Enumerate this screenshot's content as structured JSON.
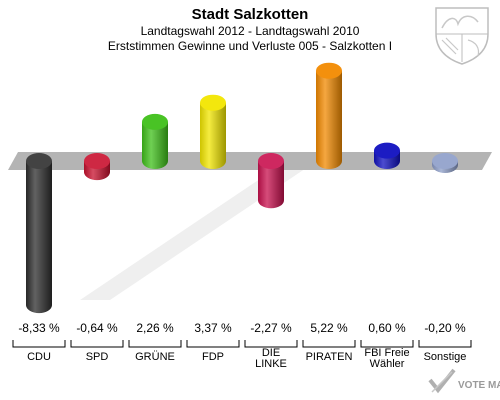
{
  "header": {
    "title": "Stadt Salzkotten",
    "line1": "Landtagswahl 2012 - Landtagswahl 2010",
    "line2": "Erststimmen Gewinne und Verluste 005 - Salzkotten I"
  },
  "branding": {
    "coat_of_arms": "nrw-coat-of-arms-icon",
    "logo_text": "VOTE MANAGER"
  },
  "chart_data": {
    "type": "bar",
    "categories": [
      "CDU",
      "SPD",
      "GRÜNE",
      "FDP",
      "DIE LINKE",
      "PIRATEN",
      "FBI Freie Wähler",
      "Sonstige"
    ],
    "category_lines": [
      [
        "CDU"
      ],
      [
        "SPD"
      ],
      [
        "GRÜNE"
      ],
      [
        "FDP"
      ],
      [
        "DIE",
        "LINKE"
      ],
      [
        "PIRATEN"
      ],
      [
        "FBI Freie",
        "Wähler"
      ],
      [
        "Sonstige"
      ]
    ],
    "values": [
      -8.33,
      -0.64,
      2.26,
      3.37,
      -2.27,
      5.22,
      0.6,
      -0.2
    ],
    "value_labels": [
      "-8,33 %",
      "-0,64 %",
      "2,26 %",
      "3,37 %",
      "-2,27 %",
      "5,22 %",
      "0,60 %",
      "-0,20 %"
    ],
    "colors": [
      "#2e2e2e",
      "#c8102e",
      "#3fc01a",
      "#f2e600",
      "#c8104e",
      "#f28a00",
      "#1010c0",
      "#8c9dc8"
    ]
  }
}
